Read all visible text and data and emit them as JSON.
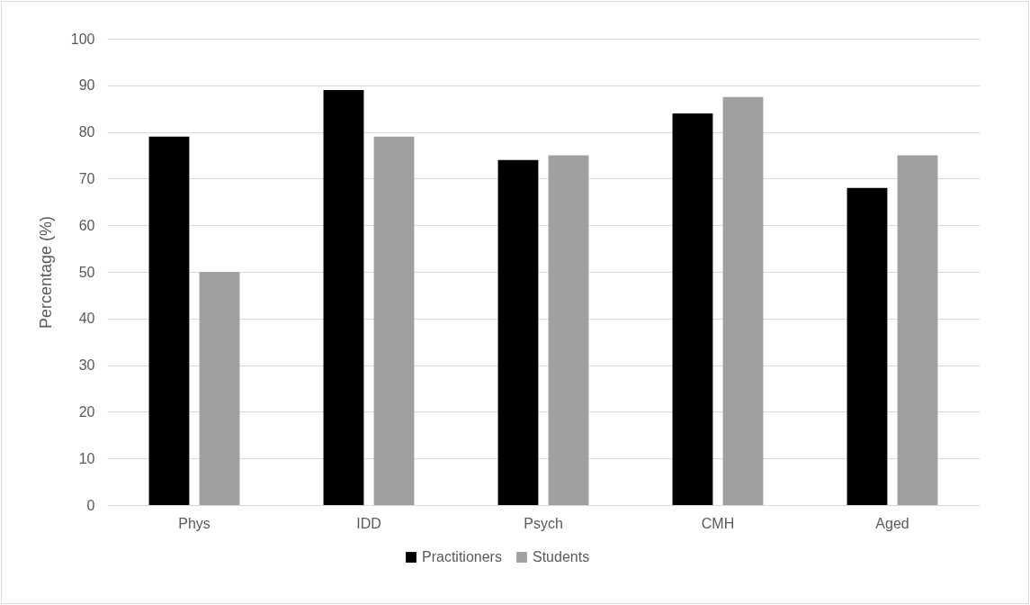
{
  "chart_data": {
    "type": "bar",
    "ylabel": "Percentage (%)",
    "categories": [
      "Phys",
      "IDD",
      "Psych",
      "CMH",
      "Aged"
    ],
    "series": [
      {
        "name": "Practitioners",
        "color": "#000000",
        "values": [
          79,
          89,
          74,
          84,
          68
        ]
      },
      {
        "name": "Students",
        "color": "#a0a0a0",
        "values": [
          50,
          79,
          75,
          87.5,
          75
        ]
      }
    ],
    "ylim": [
      0,
      100
    ],
    "yticks": [
      0,
      10,
      20,
      30,
      40,
      50,
      60,
      70,
      80,
      90,
      100
    ],
    "grid": "y",
    "legend": "bottom"
  }
}
